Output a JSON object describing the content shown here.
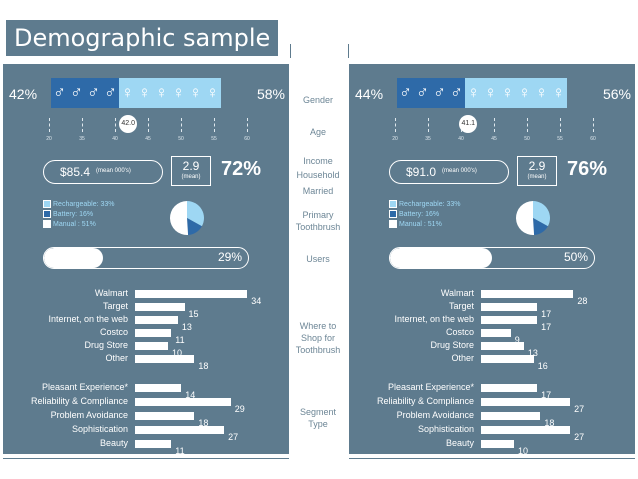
{
  "title": "Demographic sample",
  "middle_labels": {
    "gender": "Gender",
    "age": "Age",
    "income": "Income",
    "household": "Household",
    "married": "Married",
    "primary": "Primary",
    "toothbrush": "Toothbrush",
    "users": "Users",
    "where_to": "Where to",
    "shop_for": "Shop for",
    "toothbrush2": "Toothbrush",
    "segment": "Segment",
    "type": "Type"
  },
  "age_ticks": [
    "20",
    "35",
    "40",
    "45",
    "50",
    "55",
    "60"
  ],
  "colors": {
    "panel": "#5e7b8e",
    "male": "#2e6aa8",
    "female": "#9ed7f3"
  },
  "panels": [
    {
      "male_pct": "42%",
      "female_pct": "58%",
      "male_icons": 4,
      "female_icons": 6,
      "age": "42.0",
      "age_value": 42.0,
      "income": "$85.4",
      "income_unit": "(mean 000's)",
      "household": "2.9",
      "household_unit": "(mean)",
      "married": "72%",
      "legend": [
        "Rechargeable: 33%",
        "Battery: 16%",
        "Manual : 51%"
      ],
      "pie": [
        33,
        16,
        51
      ],
      "users": "29%",
      "users_value": 29,
      "where": [
        {
          "label": "Walmart",
          "value": 34
        },
        {
          "label": "Target",
          "value": 15
        },
        {
          "label": "Internet, on the web",
          "value": 13
        },
        {
          "label": "Costco",
          "value": 11
        },
        {
          "label": "Drug Store",
          "value": 10
        },
        {
          "label": "Other",
          "value": 18
        }
      ],
      "segment": [
        {
          "label": "Pleasant Experience*",
          "value": 14
        },
        {
          "label": "Reliability & Compliance",
          "value": 29
        },
        {
          "label": "Problem Avoidance",
          "value": 18
        },
        {
          "label": "Sophistication",
          "value": 27
        },
        {
          "label": "Beauty",
          "value": 11
        }
      ]
    },
    {
      "male_pct": "44%",
      "female_pct": "56%",
      "male_icons": 4,
      "female_icons": 6,
      "age": "41.1",
      "age_value": 41.1,
      "income": "$91.0",
      "income_unit": "(mean 000's)",
      "household": "2.9",
      "household_unit": "(mean)",
      "married": "76%",
      "legend": [
        "Rechargeable: 33%",
        "Battery: 16%",
        "Manual : 51%"
      ],
      "pie": [
        33,
        16,
        51
      ],
      "users": "50%",
      "users_value": 50,
      "where": [
        {
          "label": "Walmart",
          "value": 28
        },
        {
          "label": "Target",
          "value": 17
        },
        {
          "label": "Internet, on the web",
          "value": 17
        },
        {
          "label": "Costco",
          "value": 9
        },
        {
          "label": "Drug Store",
          "value": 13
        },
        {
          "label": "Other",
          "value": 16
        }
      ],
      "segment": [
        {
          "label": "Pleasant Experience*",
          "value": 17
        },
        {
          "label": "Reliability & Compliance",
          "value": 27
        },
        {
          "label": "Problem Avoidance",
          "value": 18
        },
        {
          "label": "Sophistication",
          "value": 27
        },
        {
          "label": "Beauty",
          "value": 10
        }
      ]
    }
  ]
}
